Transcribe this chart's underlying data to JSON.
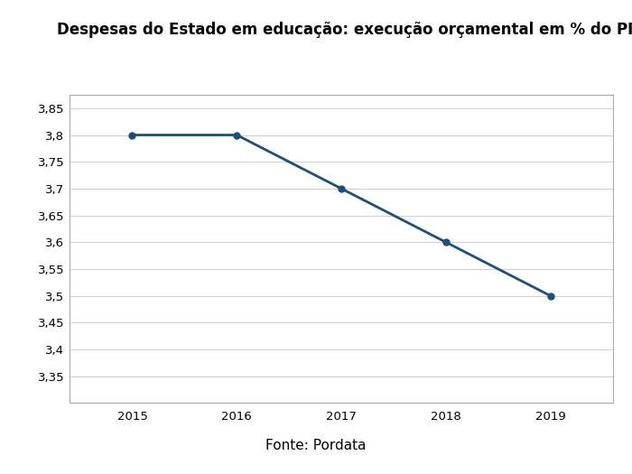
{
  "title": "Despesas do Estado em educação: execução orçamental em % do PIB",
  "years": [
    2015,
    2016,
    2017,
    2018,
    2019
  ],
  "values": [
    3.8,
    3.8,
    3.7,
    3.6,
    3.5
  ],
  "line_color": "#1F4E79",
  "marker_color": "#1F4E79",
  "ylim_min": 3.3,
  "ylim_max": 3.875,
  "yticks": [
    3.35,
    3.4,
    3.45,
    3.5,
    3.55,
    3.6,
    3.65,
    3.7,
    3.75,
    3.8,
    3.85
  ],
  "xlabel": "",
  "ylabel": "",
  "footnote": "Fonte: Pordata",
  "background_color": "#ffffff",
  "plot_bg_color": "#ffffff",
  "grid_color": "#d0d0d0",
  "title_fontsize": 12,
  "footnote_fontsize": 11,
  "tick_fontsize": 9.5
}
